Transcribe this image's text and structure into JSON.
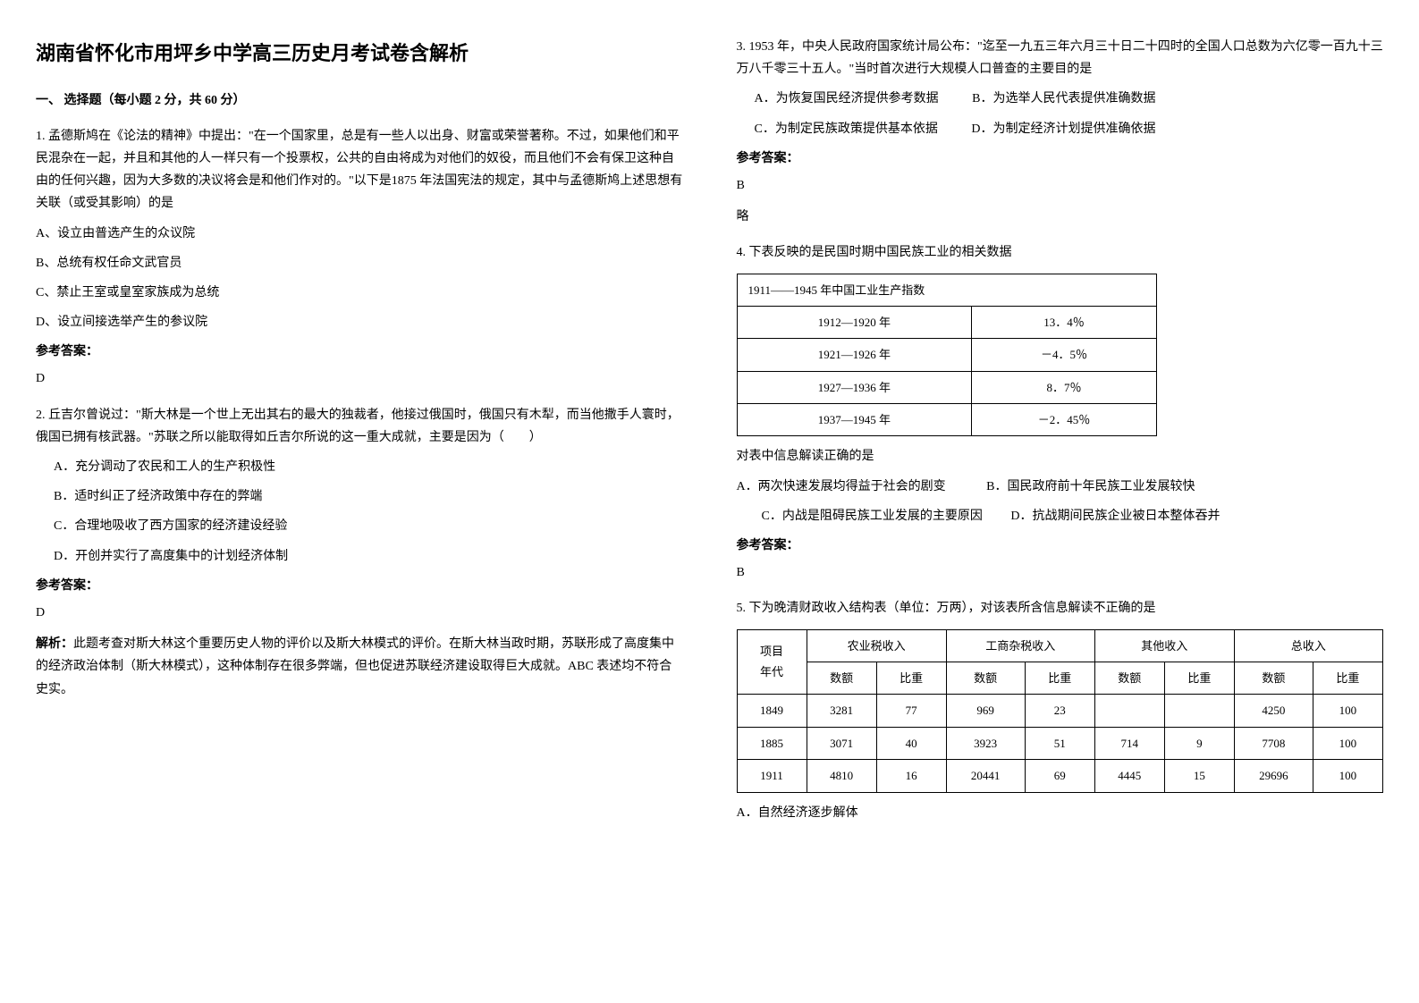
{
  "title": "湖南省怀化市用坪乡中学高三历史月考试卷含解析",
  "section_header": "一、 选择题（每小题 2 分，共 60 分）",
  "q1": {
    "text": "1. 孟德斯鸠在《论法的精神》中提出：\"在一个国家里，总是有一些人以出身、财富或荣誉著称。不过，如果他们和平民混杂在一起，并且和其他的人一样只有一个投票权，公共的自由将成为对他们的奴役，而且他们不会有保卫这种自由的任何兴趣，因为大多数的决议将会是和他们作对的。\"以下是1875 年法国宪法的规定，其中与孟德斯鸠上述思想有关联（或受其影响）的是",
    "options": {
      "A": "A、设立由普选产生的众议院",
      "B": "B、总统有权任命文武官员",
      "C": "C、禁止王室或皇室家族成为总统",
      "D": "D、设立间接选举产生的参议院"
    },
    "answer_label": "参考答案：",
    "answer": "D"
  },
  "q2": {
    "text": "2. 丘吉尔曾说过：\"斯大林是一个世上无出其右的最大的独裁者，他接过俄国时，俄国只有木犁，而当他撒手人寰时，俄国已拥有核武器。\"苏联之所以能取得如丘吉尔所说的这一重大成就，主要是因为（　　）",
    "options": {
      "A": "A．充分调动了农民和工人的生产积极性",
      "B": "B．适时纠正了经济政策中存在的弊端",
      "C": "C．合理地吸收了西方国家的经济建设经验",
      "D": "D．开创并实行了高度集中的计划经济体制"
    },
    "answer_label": "参考答案：",
    "answer": "D",
    "explanation_label": "解析：",
    "explanation": "此题考查对斯大林这个重要历史人物的评价以及斯大林模式的评价。在斯大林当政时期，苏联形成了高度集中的经济政治体制（斯大林模式），这种体制存在很多弊端，但也促进苏联经济建设取得巨大成就。ABC 表述均不符合史实。"
  },
  "q3": {
    "text": "3. 1953 年，中央人民政府国家统计局公布：\"迄至一九五三年六月三十日二十四时的全国人口总数为六亿零一百九十三万八千零三十五人。\"当时首次进行大规模人口普查的主要目的是",
    "options": {
      "A": "A．为恢复国民经济提供参考数据",
      "B": "B．为选举人民代表提供准确数据",
      "C": "C．为制定民族政策提供基本依据",
      "D": "D．为制定经济计划提供准确依据"
    },
    "answer_label": "参考答案：",
    "answer": "B",
    "note": "略"
  },
  "q4": {
    "text": "4. 下表反映的是民国时期中国民族工业的相关数据",
    "table_title": "1911——1945 年中国工业生产指数",
    "table_rows": [
      {
        "period": "1912—1920 年",
        "value": "13．4％"
      },
      {
        "period": "1921—1926 年",
        "value": "－4．5％"
      },
      {
        "period": "1927—1936 年",
        "value": "8．7％"
      },
      {
        "period": "1937—1945 年",
        "value": "－2．45％"
      }
    ],
    "sub_text": "对表中信息解读正确的是",
    "options": {
      "A": "A．两次快速发展均得益于社会的剧变",
      "B": "B．国民政府前十年民族工业发展较快",
      "C": "C．内战是阻碍民族工业发展的主要原因",
      "D": "D．抗战期间民族企业被日本整体吞并"
    },
    "answer_label": "参考答案：",
    "answer": "B"
  },
  "q5": {
    "text": "5. 下为晚清财政收入结构表（单位：万两），对该表所含信息解读不正确的是",
    "table_header": {
      "col1": "项目",
      "col2": "农业税收入",
      "col3": "工商杂税收入",
      "col4": "其他收入",
      "col5": "总收入"
    },
    "table_subheader": {
      "r1": "年代",
      "c1": "数额",
      "c2": "比重",
      "c3": "数额",
      "c4": "比重",
      "c5": "数额",
      "c6": "比重",
      "c7": "数额",
      "c8": "比重"
    },
    "table_rows": [
      {
        "year": "1849",
        "v1": "3281",
        "v2": "77",
        "v3": "969",
        "v4": "23",
        "v5": "",
        "v6": "",
        "v7": "4250",
        "v8": "100"
      },
      {
        "year": "1885",
        "v1": "3071",
        "v2": "40",
        "v3": "3923",
        "v4": "51",
        "v5": "714",
        "v6": "9",
        "v7": "7708",
        "v8": "100"
      },
      {
        "year": "1911",
        "v1": "4810",
        "v2": "16",
        "v3": "20441",
        "v4": "69",
        "v5": "4445",
        "v6": "15",
        "v7": "29696",
        "v8": "100"
      }
    ],
    "option_a": "A．自然经济逐步解体"
  }
}
